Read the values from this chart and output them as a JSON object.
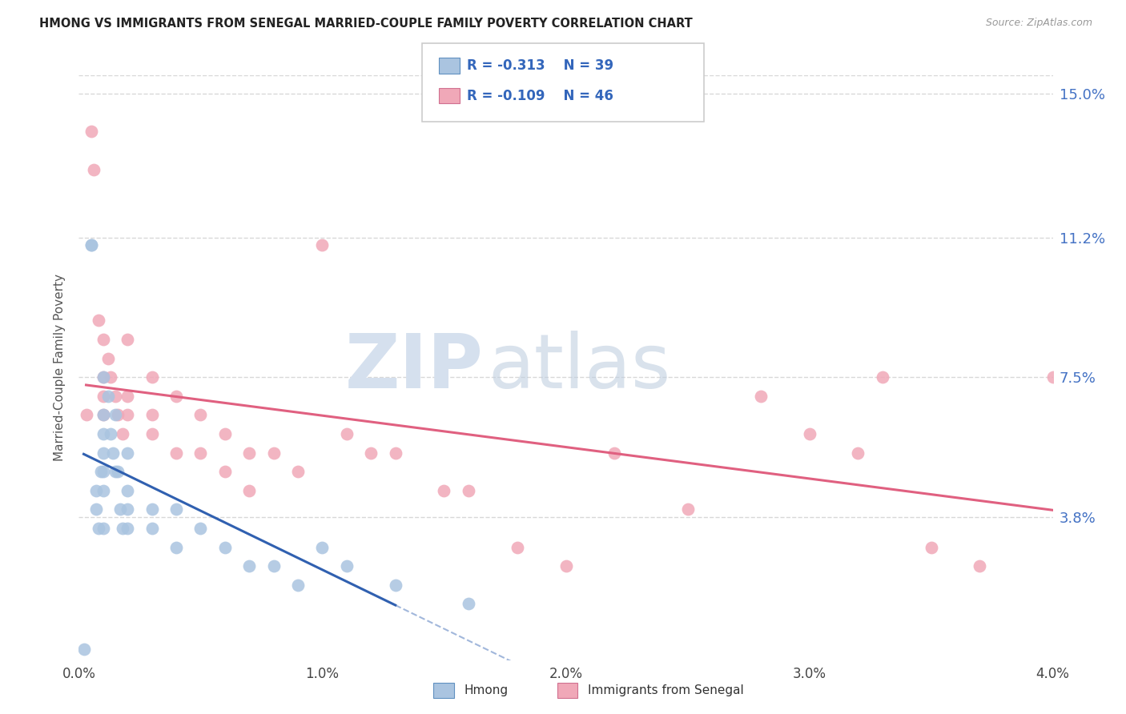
{
  "title": "HMONG VS IMMIGRANTS FROM SENEGAL MARRIED-COUPLE FAMILY POVERTY CORRELATION CHART",
  "source": "Source: ZipAtlas.com",
  "ylabel": "Married-Couple Family Poverty",
  "xlim": [
    0.0,
    0.04
  ],
  "ylim": [
    0.0,
    0.155
  ],
  "yticks": [
    0.038,
    0.075,
    0.112,
    0.15
  ],
  "ytick_labels": [
    "3.8%",
    "7.5%",
    "11.2%",
    "15.0%"
  ],
  "xticks": [
    0.0,
    0.01,
    0.02,
    0.03,
    0.04
  ],
  "xtick_labels": [
    "0.0%",
    "1.0%",
    "2.0%",
    "3.0%",
    "4.0%"
  ],
  "grid_color": "#d8d8d8",
  "background_color": "#ffffff",
  "watermark_zip": "ZIP",
  "watermark_atlas": "atlas",
  "legend_labels": [
    "Hmong",
    "Immigrants from Senegal"
  ],
  "hmong_color": "#aac4e0",
  "senegal_color": "#f0a8b8",
  "hmong_line_color": "#3060b0",
  "senegal_line_color": "#e06080",
  "R_hmong": -0.313,
  "N_hmong": 39,
  "R_senegal": -0.109,
  "N_senegal": 46,
  "hmong_x": [
    0.0002,
    0.0005,
    0.0005,
    0.0007,
    0.0007,
    0.0008,
    0.0009,
    0.001,
    0.001,
    0.001,
    0.001,
    0.001,
    0.001,
    0.001,
    0.0012,
    0.0013,
    0.0014,
    0.0015,
    0.0015,
    0.0016,
    0.0017,
    0.0018,
    0.002,
    0.002,
    0.002,
    0.002,
    0.003,
    0.003,
    0.004,
    0.004,
    0.005,
    0.006,
    0.007,
    0.008,
    0.009,
    0.01,
    0.011,
    0.013,
    0.016
  ],
  "hmong_y": [
    0.003,
    0.11,
    0.11,
    0.045,
    0.04,
    0.035,
    0.05,
    0.075,
    0.065,
    0.06,
    0.055,
    0.05,
    0.045,
    0.035,
    0.07,
    0.06,
    0.055,
    0.065,
    0.05,
    0.05,
    0.04,
    0.035,
    0.055,
    0.045,
    0.04,
    0.035,
    0.04,
    0.035,
    0.04,
    0.03,
    0.035,
    0.03,
    0.025,
    0.025,
    0.02,
    0.03,
    0.025,
    0.02,
    0.015
  ],
  "senegal_x": [
    0.0003,
    0.0005,
    0.0006,
    0.0008,
    0.001,
    0.001,
    0.001,
    0.001,
    0.0012,
    0.0013,
    0.0015,
    0.0016,
    0.0018,
    0.002,
    0.002,
    0.002,
    0.003,
    0.003,
    0.003,
    0.004,
    0.004,
    0.005,
    0.005,
    0.006,
    0.006,
    0.007,
    0.007,
    0.008,
    0.009,
    0.01,
    0.011,
    0.012,
    0.013,
    0.015,
    0.016,
    0.018,
    0.02,
    0.022,
    0.025,
    0.028,
    0.03,
    0.032,
    0.033,
    0.035,
    0.037,
    0.04
  ],
  "senegal_y": [
    0.065,
    0.14,
    0.13,
    0.09,
    0.085,
    0.075,
    0.07,
    0.065,
    0.08,
    0.075,
    0.07,
    0.065,
    0.06,
    0.085,
    0.07,
    0.065,
    0.075,
    0.065,
    0.06,
    0.07,
    0.055,
    0.065,
    0.055,
    0.06,
    0.05,
    0.055,
    0.045,
    0.055,
    0.05,
    0.11,
    0.06,
    0.055,
    0.055,
    0.045,
    0.045,
    0.03,
    0.025,
    0.055,
    0.04,
    0.07,
    0.06,
    0.055,
    0.075,
    0.03,
    0.025,
    0.075
  ],
  "hmong_line_start": 0.0002,
  "hmong_line_end_solid": 0.013,
  "hmong_line_end_dashed": 0.021,
  "senegal_line_start": 0.0003,
  "senegal_line_end": 0.04
}
